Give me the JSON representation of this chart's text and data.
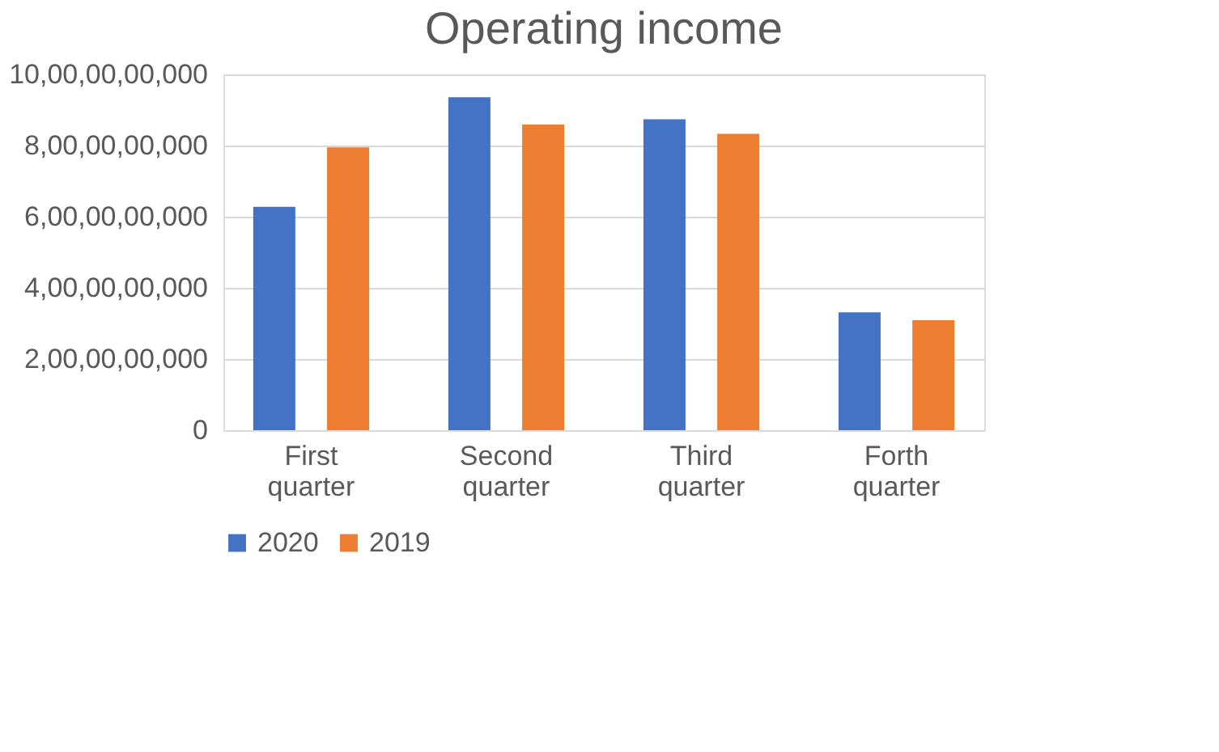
{
  "chart_data": {
    "type": "bar",
    "title": "Operating income",
    "categories": [
      "First quarter",
      "Second quarter",
      "Third quarter",
      "Forth quarter"
    ],
    "series": [
      {
        "name": "2020",
        "color": "#4472c4",
        "values": [
          6280000000,
          9360000000,
          8740000000,
          3310000000
        ]
      },
      {
        "name": "2019",
        "color": "#ed7d31",
        "values": [
          7950000000,
          8590000000,
          8330000000,
          3090000000
        ]
      }
    ],
    "ylim": [
      0,
      10000000000
    ],
    "yticks": [
      0,
      {
        "value": 2000000000,
        "label": "2,00,00,00,000"
      },
      {
        "value": 4000000000,
        "label": "4,00,00,00,000"
      },
      {
        "value": 6000000000,
        "label": "6,00,00,00,000"
      },
      {
        "value": 8000000000,
        "label": "8,00,00,00,000"
      },
      {
        "value": 10000000000,
        "label": "10,00,00,00,000"
      }
    ],
    "grid": "y",
    "legend": "bottom"
  }
}
